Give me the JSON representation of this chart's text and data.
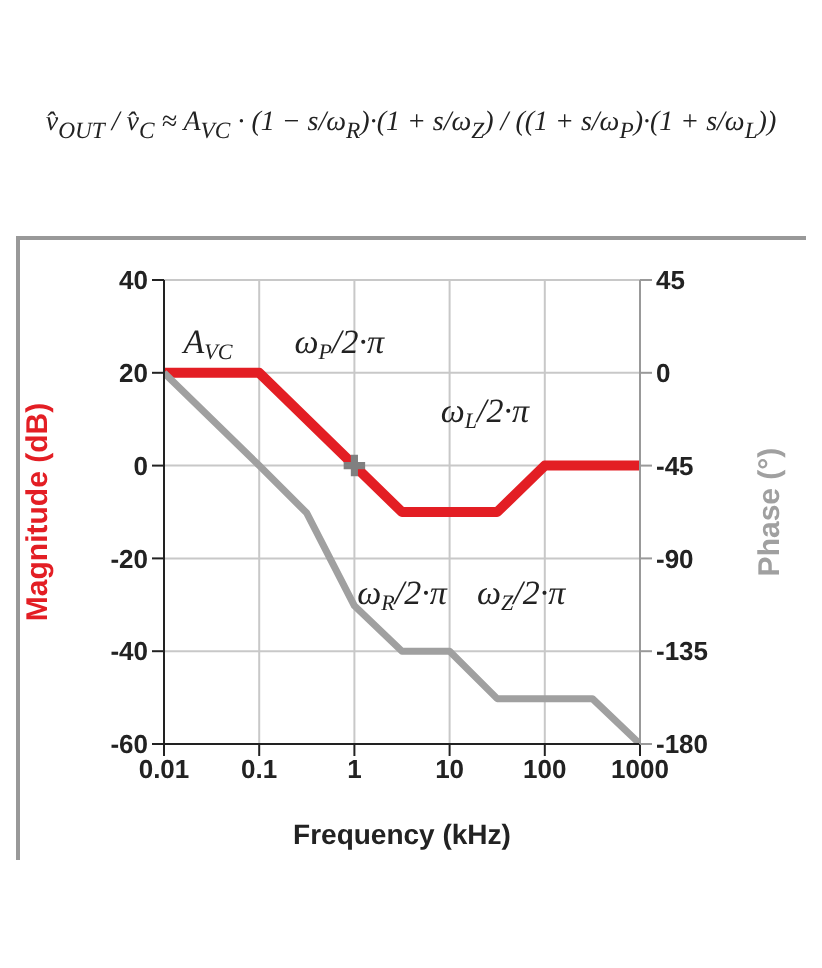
{
  "chart_data": {
    "type": "line",
    "xlabel": "Frequency (kHz)",
    "ylabel": "Magnitude (dB)",
    "y2label": "Phase (°)",
    "log": "x",
    "xlim": [
      0.01,
      1000
    ],
    "xticks": [
      0.01,
      0.1,
      1,
      10,
      100,
      1000
    ],
    "ylim": [
      -60,
      40
    ],
    "yticks": [
      -60,
      -40,
      -20,
      0,
      20,
      40
    ],
    "y2lim": [
      -180,
      45
    ],
    "y2ticks": [
      -180,
      -135,
      -90,
      -45,
      0,
      45
    ],
    "grid": true,
    "marker": "none",
    "line_style": "solid",
    "series": [
      {
        "color": "#e31e24",
        "x": [
          0.01,
          0.1,
          3.16,
          31.6,
          100,
          1000
        ],
        "values": [
          20,
          20,
          -10,
          -10,
          0,
          0
        ]
      },
      {
        "color": "#a0a0a0",
        "axis": "y2",
        "x": [
          0.01,
          0.1,
          0.316,
          1,
          3.16,
          10,
          31.6,
          316,
          1000
        ],
        "values": [
          0,
          -45,
          -68,
          -113,
          -135,
          -135,
          -158,
          -158,
          -180
        ]
      },
      {
        "type": "scatter",
        "marker": "cross",
        "color": "#808080",
        "x": [
          1
        ],
        "values": [
          0
        ]
      }
    ],
    "annotations": [
      "v̂$_{OUT}$ / v̂$_{C}$ ≈ A$_{VC}$ · (1 − s/ω$_{R}$)·(1 + s/ω$_{Z}$) / ((1 + s/ω$_{P}$)·(1 + s/ω$_{L}$))",
      {
        "text": "A$_{VC}$",
        "x": 0.01,
        "y": 20
      },
      {
        "text": "ω$_{P}$/2·π",
        "x": 0.1,
        "y": 20
      },
      {
        "text": "ω$_{R}$/2·π",
        "x": 3.16,
        "y": -10
      },
      {
        "text": "ω$_{Z}$/2·π",
        "x": 31.6,
        "y": -10
      },
      {
        "text": "ω$_{L}$/2·π",
        "x": 100,
        "y": 0
      }
    ]
  }
}
